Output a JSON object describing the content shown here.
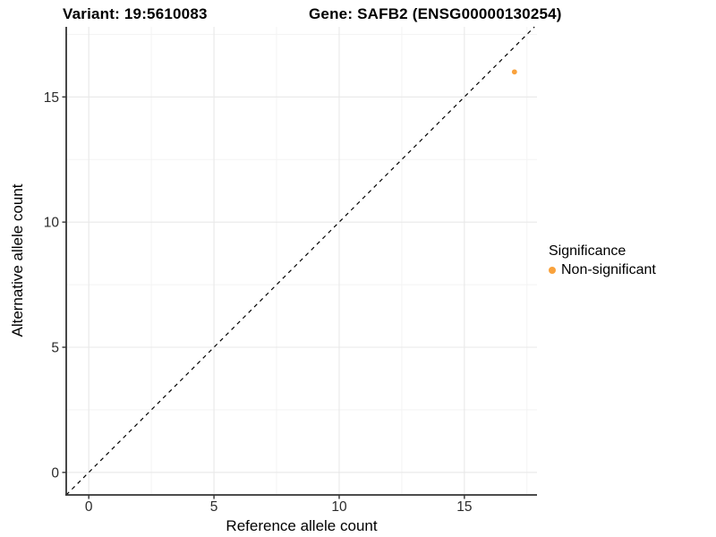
{
  "page": {
    "type": "statistical-plot",
    "background": "#ffffff"
  },
  "colors": {
    "point_orange": "#F9A23C",
    "axis_line": "#333333",
    "tick_mark": "#333333",
    "tick_label": "#2b2b2b",
    "grid_major": "#e8e8e8",
    "grid_minor": "#f3f3f3",
    "reference_line": "#000000",
    "text": "#000000"
  },
  "chart_data": {
    "type": "scatter",
    "title_left": "Variant: 19:5610083",
    "title_right": "Gene: SAFB2 (ENSG00000130254)",
    "xlabel": "Reference allele count",
    "ylabel": "Alternative allele count",
    "xlim": [
      -0.9,
      17.9
    ],
    "ylim": [
      -0.9,
      17.8
    ],
    "xticks": [
      0,
      5,
      10,
      15
    ],
    "yticks": [
      0,
      5,
      10,
      15
    ],
    "minor_xticks": [
      2.5,
      7.5,
      12.5,
      17.5
    ],
    "minor_yticks": [
      2.5,
      7.5,
      12.5,
      17.5
    ],
    "grid": true,
    "reference_line": {
      "kind": "identity",
      "style": "dashed",
      "color": "#000000"
    },
    "series": [
      {
        "name": "Non-significant",
        "color": "#F9A23C",
        "points": [
          {
            "x": 17,
            "y": 16
          }
        ]
      }
    ],
    "legend": {
      "title": "Significance",
      "position": "right",
      "items": [
        {
          "label": "Non-significant",
          "color": "#F9A23C"
        }
      ]
    }
  }
}
